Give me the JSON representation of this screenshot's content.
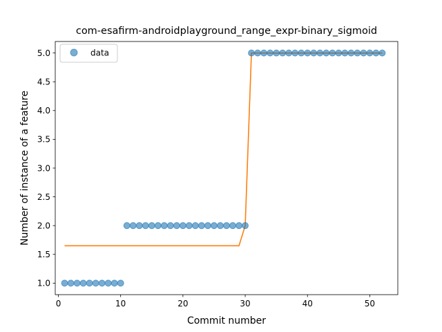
{
  "chart_data": {
    "type": "scatter",
    "title": "com-esafirm-androidplayground_range_expr-binary_sigmoid",
    "xlabel": "Commit number",
    "ylabel": "Number of instance of a feature",
    "xlim": [
      -0.5,
      54.5
    ],
    "ylim": [
      0.8,
      5.2
    ],
    "xticks": [
      0,
      10,
      20,
      30,
      40,
      50
    ],
    "xtick_labels": [
      "0",
      "10",
      "20",
      "30",
      "40",
      "50"
    ],
    "yticks": [
      1.0,
      1.5,
      2.0,
      2.5,
      3.0,
      3.5,
      4.0,
      4.5,
      5.0
    ],
    "ytick_labels": [
      "1.0",
      "1.5",
      "2.0",
      "2.5",
      "3.0",
      "3.5",
      "4.0",
      "4.5",
      "5.0"
    ],
    "grid": false,
    "legend": {
      "position": "top-left",
      "entries": [
        "data"
      ]
    },
    "series": [
      {
        "name": "data",
        "kind": "scatter",
        "color": "#1f77b4",
        "x": [
          1,
          2,
          3,
          4,
          5,
          6,
          7,
          8,
          9,
          10,
          11,
          12,
          13,
          14,
          15,
          16,
          17,
          18,
          19,
          20,
          21,
          22,
          23,
          24,
          25,
          26,
          27,
          28,
          29,
          30,
          31,
          32,
          33,
          34,
          35,
          36,
          37,
          38,
          39,
          40,
          41,
          42,
          43,
          44,
          45,
          46,
          47,
          48,
          49,
          50,
          51,
          52
        ],
        "y": [
          1,
          1,
          1,
          1,
          1,
          1,
          1,
          1,
          1,
          1,
          2,
          2,
          2,
          2,
          2,
          2,
          2,
          2,
          2,
          2,
          2,
          2,
          2,
          2,
          2,
          2,
          2,
          2,
          2,
          2,
          5,
          5,
          5,
          5,
          5,
          5,
          5,
          5,
          5,
          5,
          5,
          5,
          5,
          5,
          5,
          5,
          5,
          5,
          5,
          5,
          5,
          5
        ]
      },
      {
        "kind": "line",
        "color": "#ff7f0e",
        "x": [
          1,
          29,
          30,
          31,
          52
        ],
        "y": [
          1.65,
          1.65,
          2.0,
          5.0,
          5.0
        ]
      }
    ]
  }
}
